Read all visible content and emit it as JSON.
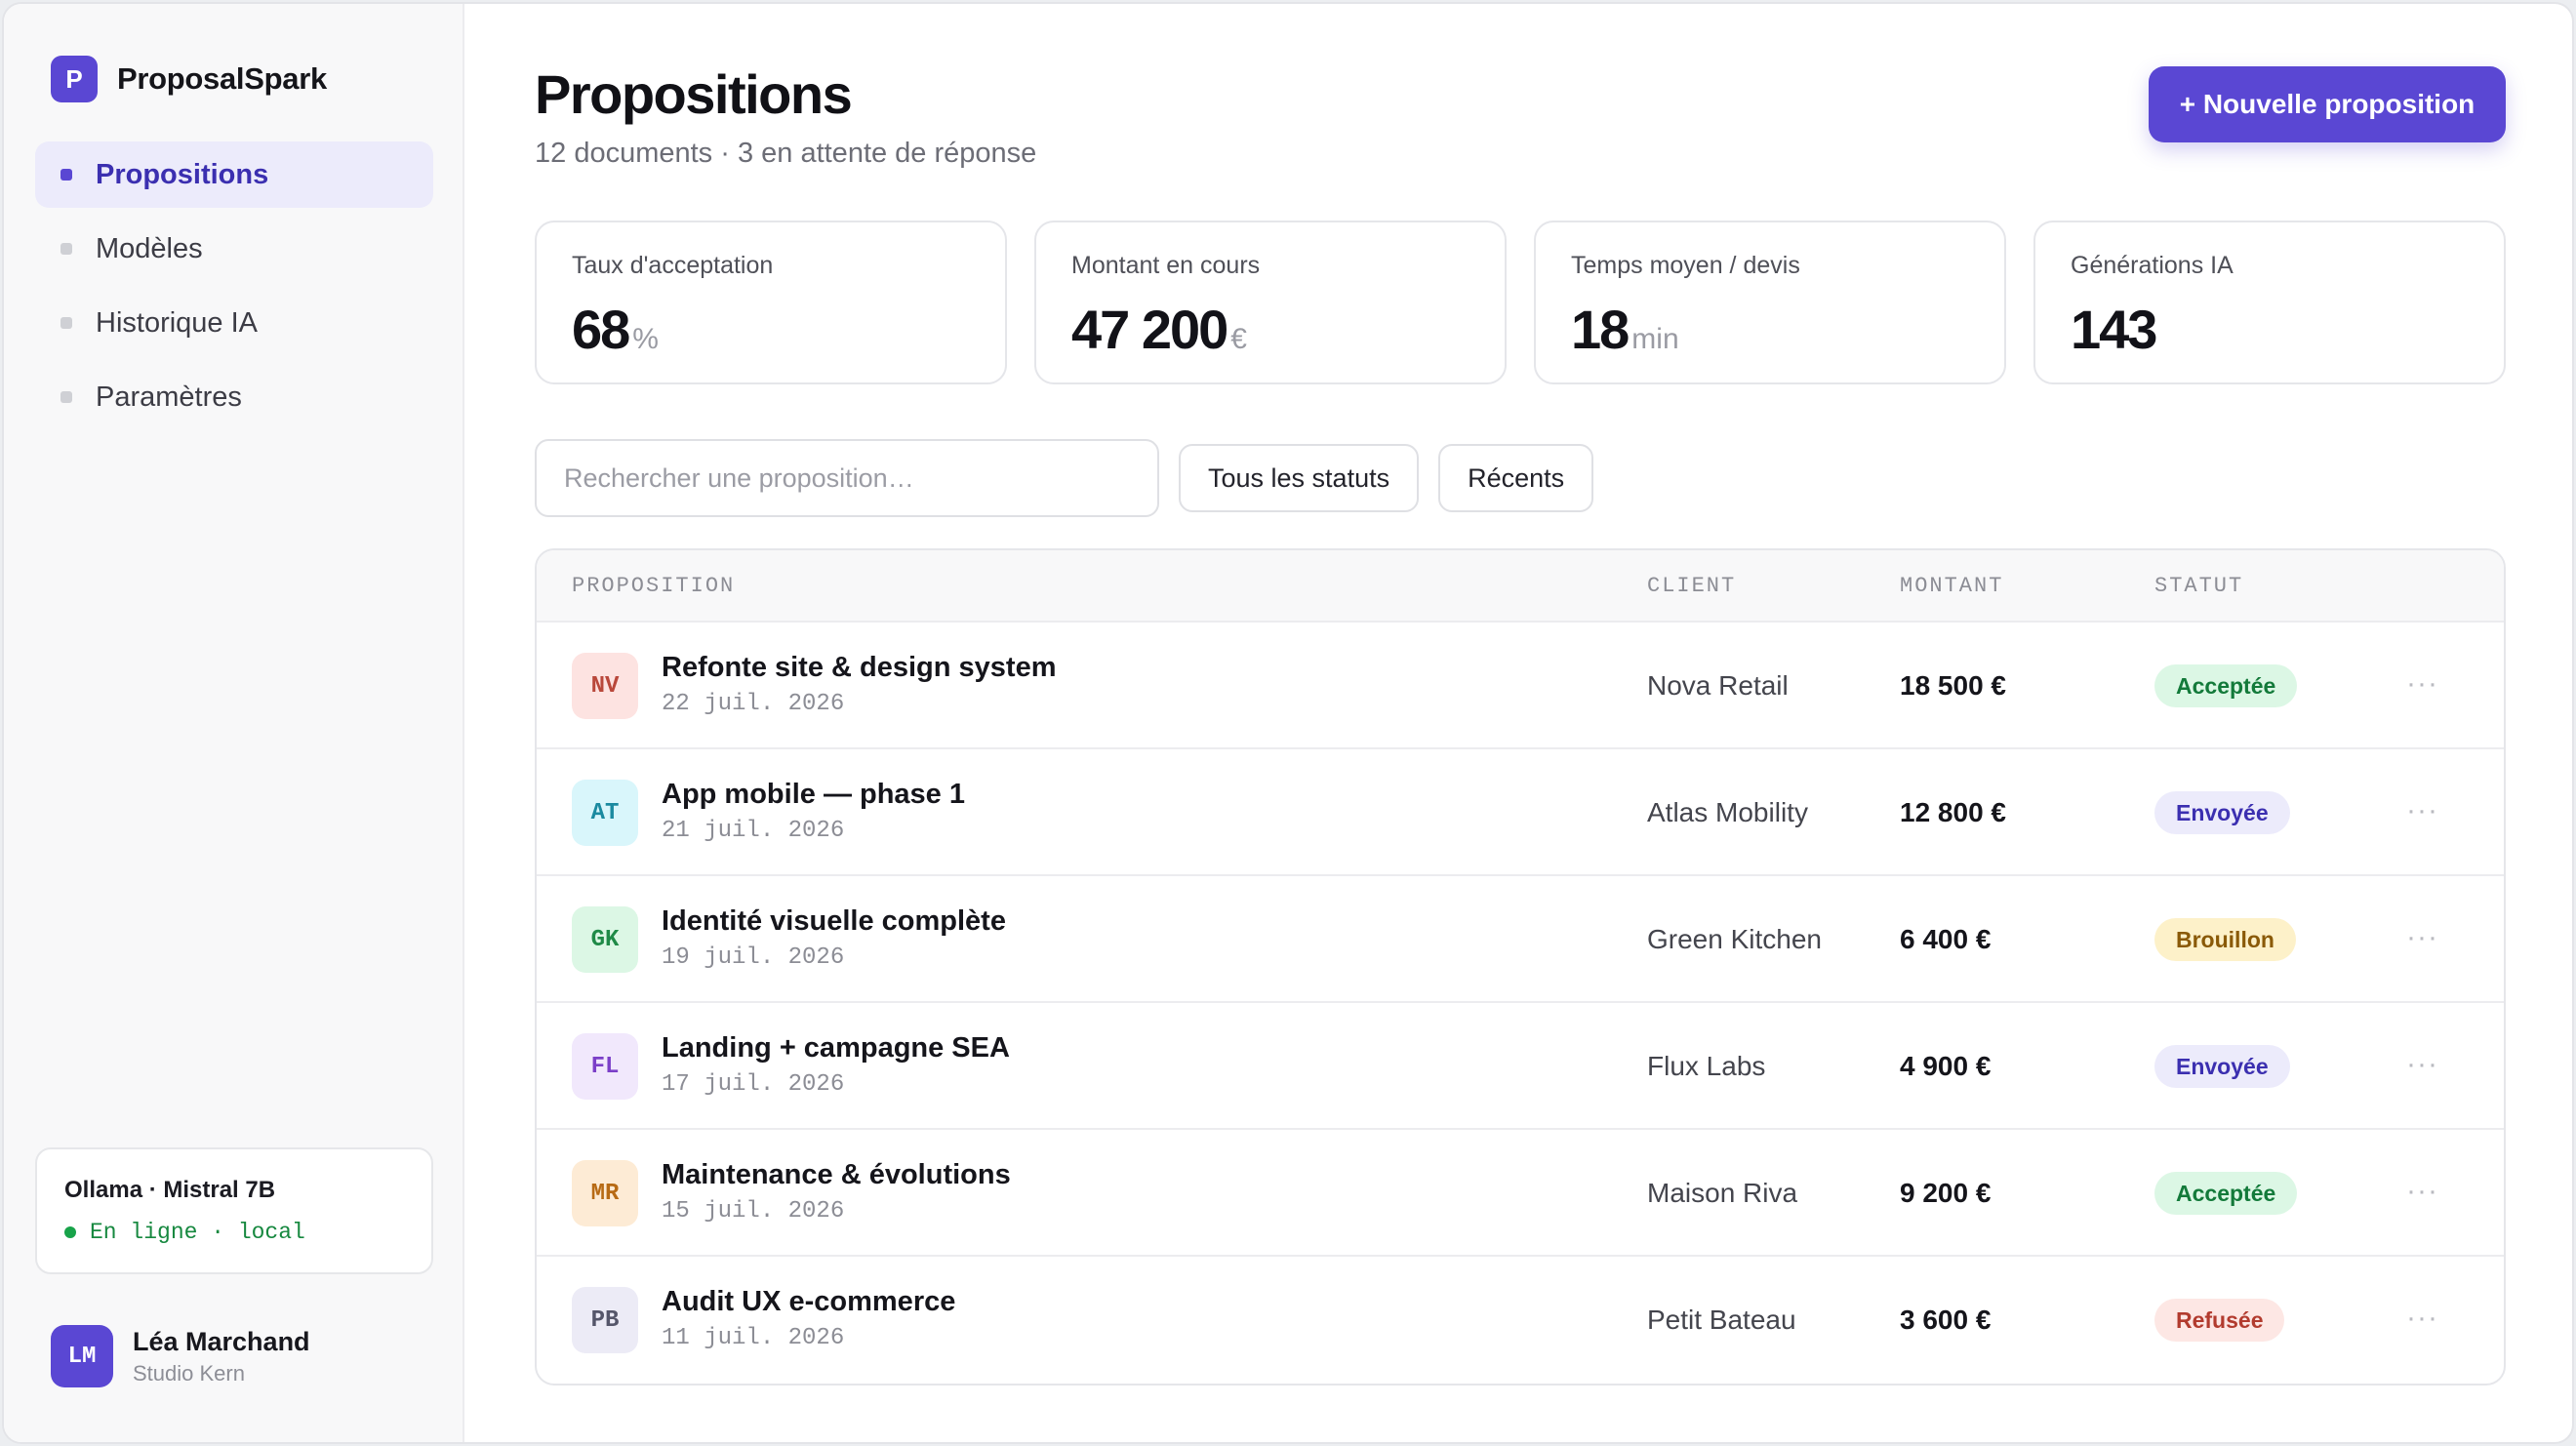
{
  "app": {
    "logo_letter": "P",
    "name": "ProposalSpark"
  },
  "sidebar": {
    "items": [
      {
        "label": "Propositions",
        "active": true
      },
      {
        "label": "Modèles",
        "active": false
      },
      {
        "label": "Historique IA",
        "active": false
      },
      {
        "label": "Paramètres",
        "active": false
      }
    ],
    "model": {
      "name": "Ollama · Mistral 7B",
      "status": "En ligne · local"
    },
    "user": {
      "initials": "LM",
      "name": "Léa Marchand",
      "org": "Studio Kern"
    }
  },
  "header": {
    "title": "Propositions",
    "subtitle": "12 documents · 3 en attente de réponse",
    "new_button": "+ Nouvelle proposition"
  },
  "kpis": [
    {
      "label": "Taux d'acceptation",
      "value": "68",
      "unit": "%"
    },
    {
      "label": "Montant en cours",
      "value": "47 200",
      "unit": "€"
    },
    {
      "label": "Temps moyen / devis",
      "value": "18",
      "unit": "min"
    },
    {
      "label": "Générations IA",
      "value": "143",
      "unit": ""
    }
  ],
  "filters": {
    "search_placeholder": "Rechercher une proposition…",
    "status_filter": "Tous les statuts",
    "sort": "Récents"
  },
  "table": {
    "headers": {
      "proposition": "PROPOSITION",
      "client": "CLIENT",
      "amount": "MONTANT",
      "status": "STATUT"
    },
    "menu_glyph": "···",
    "rows": [
      {
        "initials": "NV",
        "title": "Refonte site & design system",
        "date": "22 juil. 2026",
        "client": "Nova Retail",
        "amount": "18 500 €",
        "status": "Acceptée",
        "icon_bg": "#fde3e1",
        "icon_fg": "#b9483b",
        "badge_bg": "#dcf7e5",
        "badge_fg": "#137a3a"
      },
      {
        "initials": "AT",
        "title": "App mobile — phase 1",
        "date": "21 juil. 2026",
        "client": "Atlas Mobility",
        "amount": "12 800 €",
        "status": "Envoyée",
        "icon_bg": "#d9f6fb",
        "icon_fg": "#1b8aa0",
        "badge_bg": "#ecebfb",
        "badge_fg": "#3b2fb0"
      },
      {
        "initials": "GK",
        "title": "Identité visuelle complète",
        "date": "19 juil. 2026",
        "client": "Green Kitchen",
        "amount": "6 400 €",
        "status": "Brouillon",
        "icon_bg": "#dcf7e5",
        "icon_fg": "#1f8a47",
        "badge_bg": "#fdf1c9",
        "badge_fg": "#8a5a08"
      },
      {
        "initials": "FL",
        "title": "Landing + campagne SEA",
        "date": "17 juil. 2026",
        "client": "Flux Labs",
        "amount": "4 900 €",
        "status": "Envoyée",
        "icon_bg": "#f1e8fc",
        "icon_fg": "#7b3fc8",
        "badge_bg": "#ecebfb",
        "badge_fg": "#3b2fb0"
      },
      {
        "initials": "MR",
        "title": "Maintenance & évolutions",
        "date": "15 juil. 2026",
        "client": "Maison Riva",
        "amount": "9 200 €",
        "status": "Acceptée",
        "icon_bg": "#fdebd5",
        "icon_fg": "#b76a14",
        "badge_bg": "#dcf7e5",
        "badge_fg": "#137a3a"
      },
      {
        "initials": "PB",
        "title": "Audit UX e-commerce",
        "date": "11 juil. 2026",
        "client": "Petit Bateau",
        "amount": "3 600 €",
        "status": "Refusée",
        "icon_bg": "#ecebf6",
        "icon_fg": "#55566a",
        "badge_bg": "#fde7e4",
        "badge_fg": "#b23b2e"
      }
    ]
  }
}
